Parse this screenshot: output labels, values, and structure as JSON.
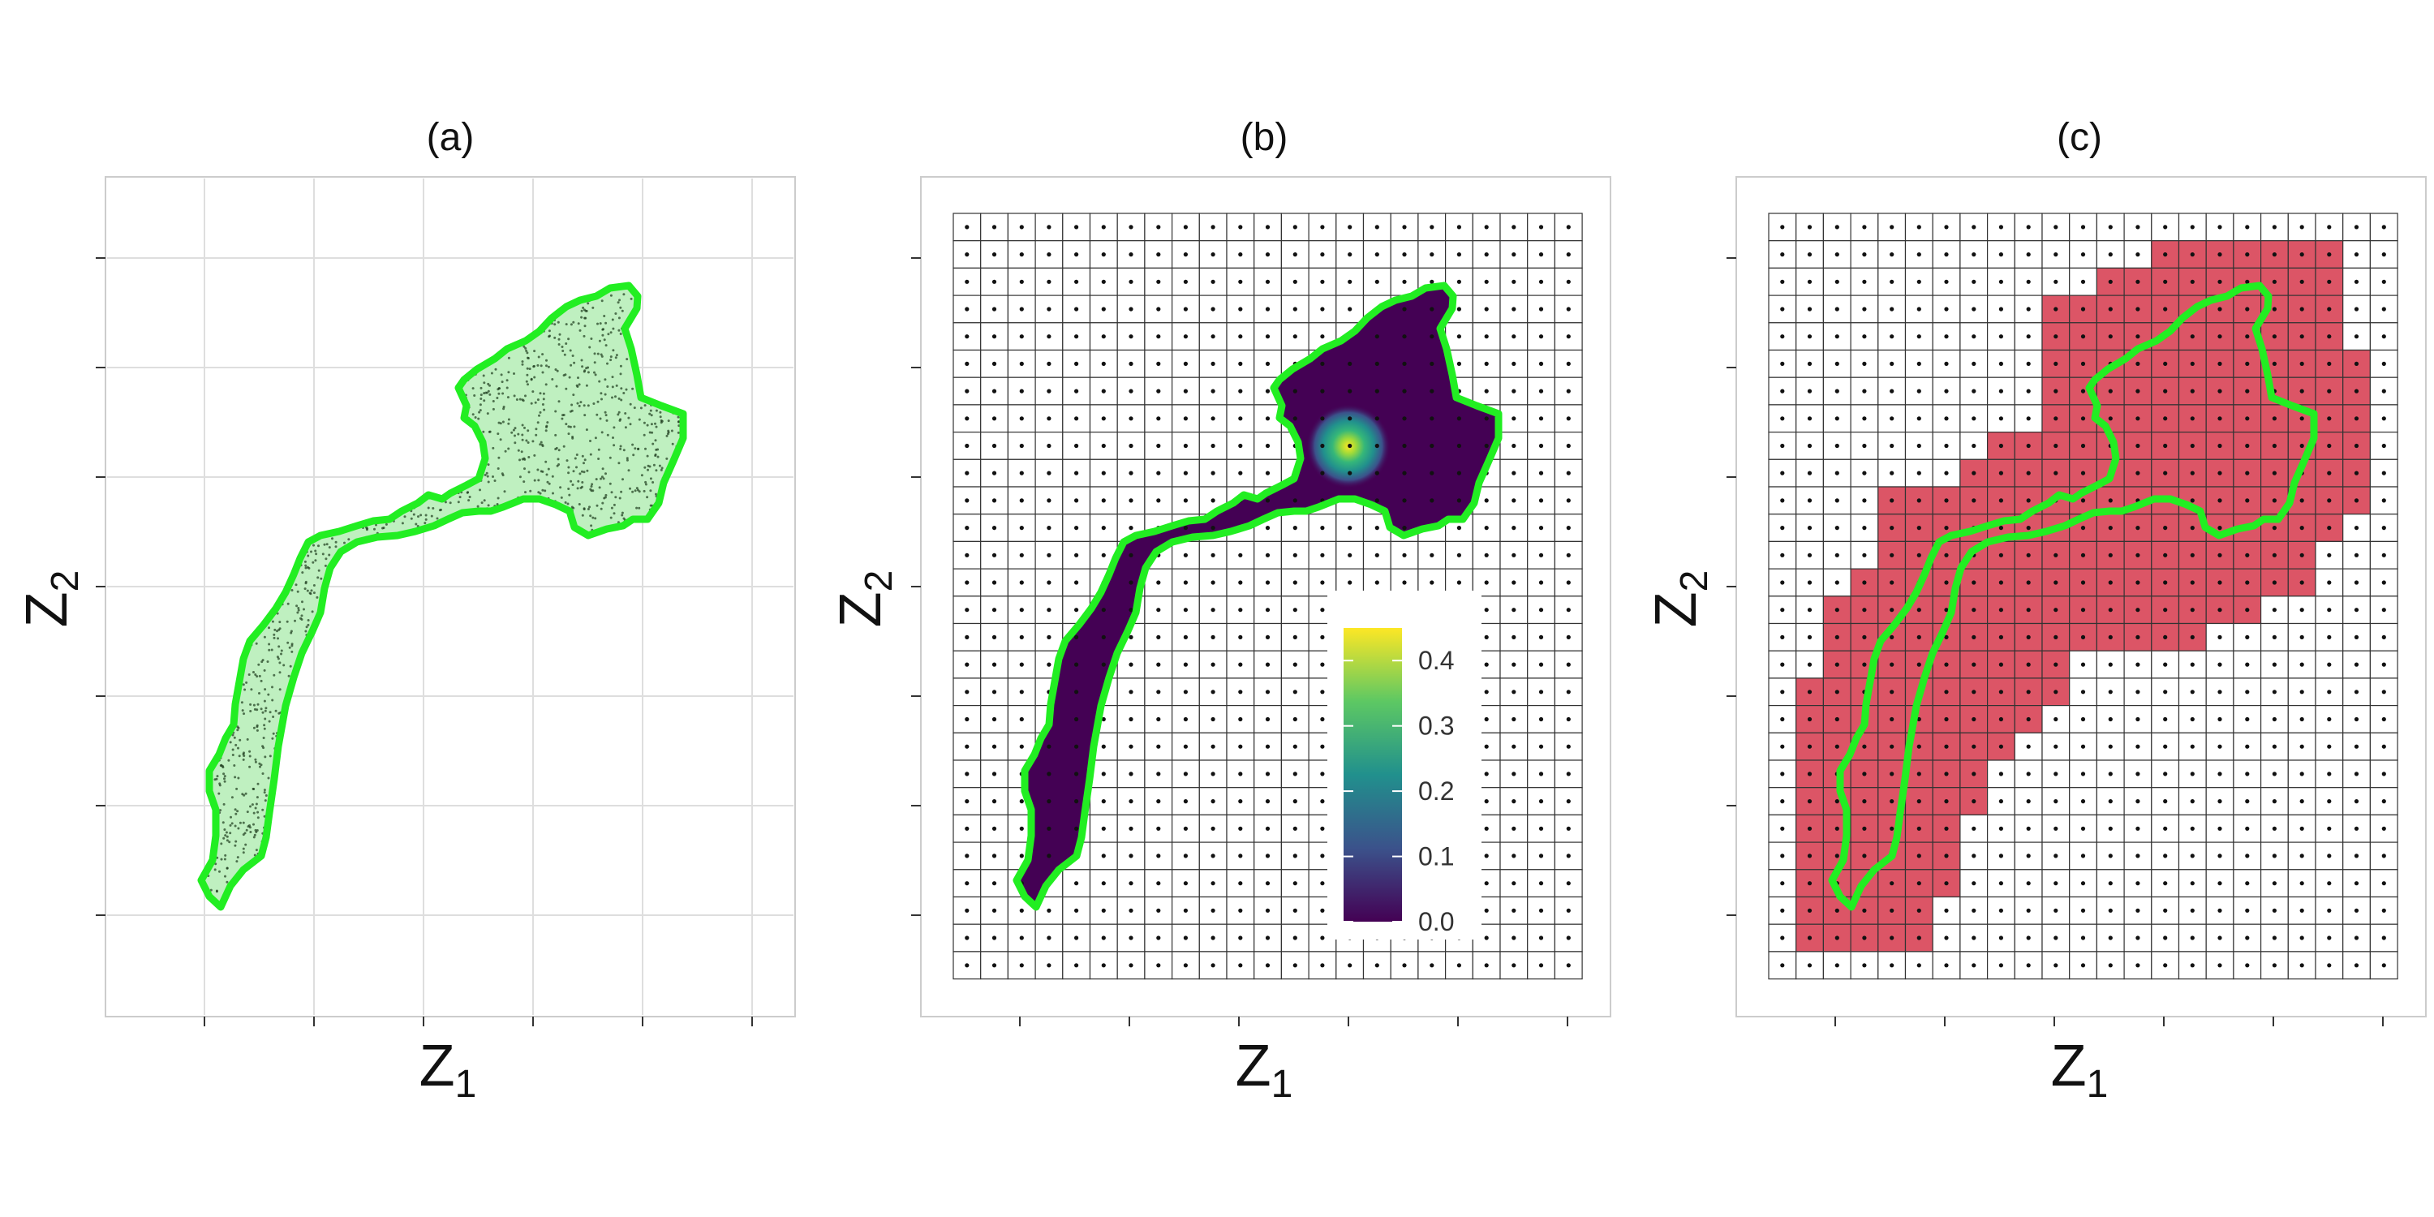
{
  "colors": {
    "outline": "#22ee22",
    "region_fill": "#bff0c0",
    "points": "#1d3a1d",
    "density_background": "#440154",
    "selected_cell": "#dc5566",
    "grid_line": "#333333",
    "panel_border": "#cccccc",
    "gridline": "#dedede"
  },
  "panels": [
    {
      "id": "a",
      "title": "(a)",
      "xlabel": "Z",
      "xlabel_sub": "1",
      "ylabel": "Z",
      "ylabel_sub": "2"
    },
    {
      "id": "b",
      "title": "(b)",
      "xlabel": "Z",
      "xlabel_sub": "1",
      "ylabel": "Z",
      "ylabel_sub": "2"
    },
    {
      "id": "c",
      "title": "(c)",
      "xlabel": "Z",
      "xlabel_sub": "1",
      "ylabel": "Z",
      "ylabel_sub": "2"
    }
  ],
  "chart_data": [
    {
      "type": "scatter",
      "panel": "(a)",
      "description_layer": "sample points inside a region outlined in green",
      "grid": true
    },
    {
      "type": "heatmap",
      "panel": "(b)",
      "grid_cells": {
        "cols": 23,
        "rows": 28
      },
      "colorbar": {
        "ticks": [
          "0.0",
          "0.1",
          "0.2",
          "0.3",
          "0.4"
        ],
        "min": 0.0,
        "max": 0.45,
        "colormap": "viridis",
        "placement": "inside, lower-right"
      },
      "peak_value": 0.45
    },
    {
      "type": "heatmap",
      "panel": "(c)",
      "grid_cells": {
        "cols": 23,
        "rows": 28
      },
      "selected_rows": [
        {
          "row": 1,
          "cols": [
            14,
            20
          ]
        },
        {
          "row": 2,
          "cols": [
            12,
            20
          ]
        },
        {
          "row": 3,
          "cols": [
            10,
            20
          ]
        },
        {
          "row": 4,
          "cols": [
            10,
            20
          ]
        },
        {
          "row": 5,
          "cols": [
            10,
            21
          ]
        },
        {
          "row": 6,
          "cols": [
            10,
            21
          ]
        },
        {
          "row": 7,
          "cols": [
            10,
            21
          ]
        },
        {
          "row": 8,
          "cols": [
            8,
            21
          ]
        },
        {
          "row": 9,
          "cols": [
            7,
            21
          ]
        },
        {
          "row": 10,
          "cols": [
            4,
            21
          ]
        },
        {
          "row": 11,
          "cols": [
            4,
            20
          ]
        },
        {
          "row": 12,
          "cols": [
            4,
            19
          ]
        },
        {
          "row": 13,
          "cols": [
            3,
            19
          ]
        },
        {
          "row": 14,
          "cols": [
            2,
            17
          ]
        },
        {
          "row": 15,
          "cols": [
            2,
            15
          ]
        },
        {
          "row": 16,
          "cols": [
            2,
            10
          ]
        },
        {
          "row": 17,
          "cols": [
            1,
            10
          ]
        },
        {
          "row": 18,
          "cols": [
            1,
            9
          ]
        },
        {
          "row": 19,
          "cols": [
            1,
            8
          ]
        },
        {
          "row": 20,
          "cols": [
            1,
            7
          ]
        },
        {
          "row": 21,
          "cols": [
            1,
            7
          ]
        },
        {
          "row": 22,
          "cols": [
            1,
            6
          ]
        },
        {
          "row": 23,
          "cols": [
            1,
            6
          ]
        },
        {
          "row": 24,
          "cols": [
            1,
            6
          ]
        },
        {
          "row": 25,
          "cols": [
            1,
            5
          ]
        },
        {
          "row": 26,
          "cols": [
            1,
            5
          ]
        }
      ]
    }
  ]
}
